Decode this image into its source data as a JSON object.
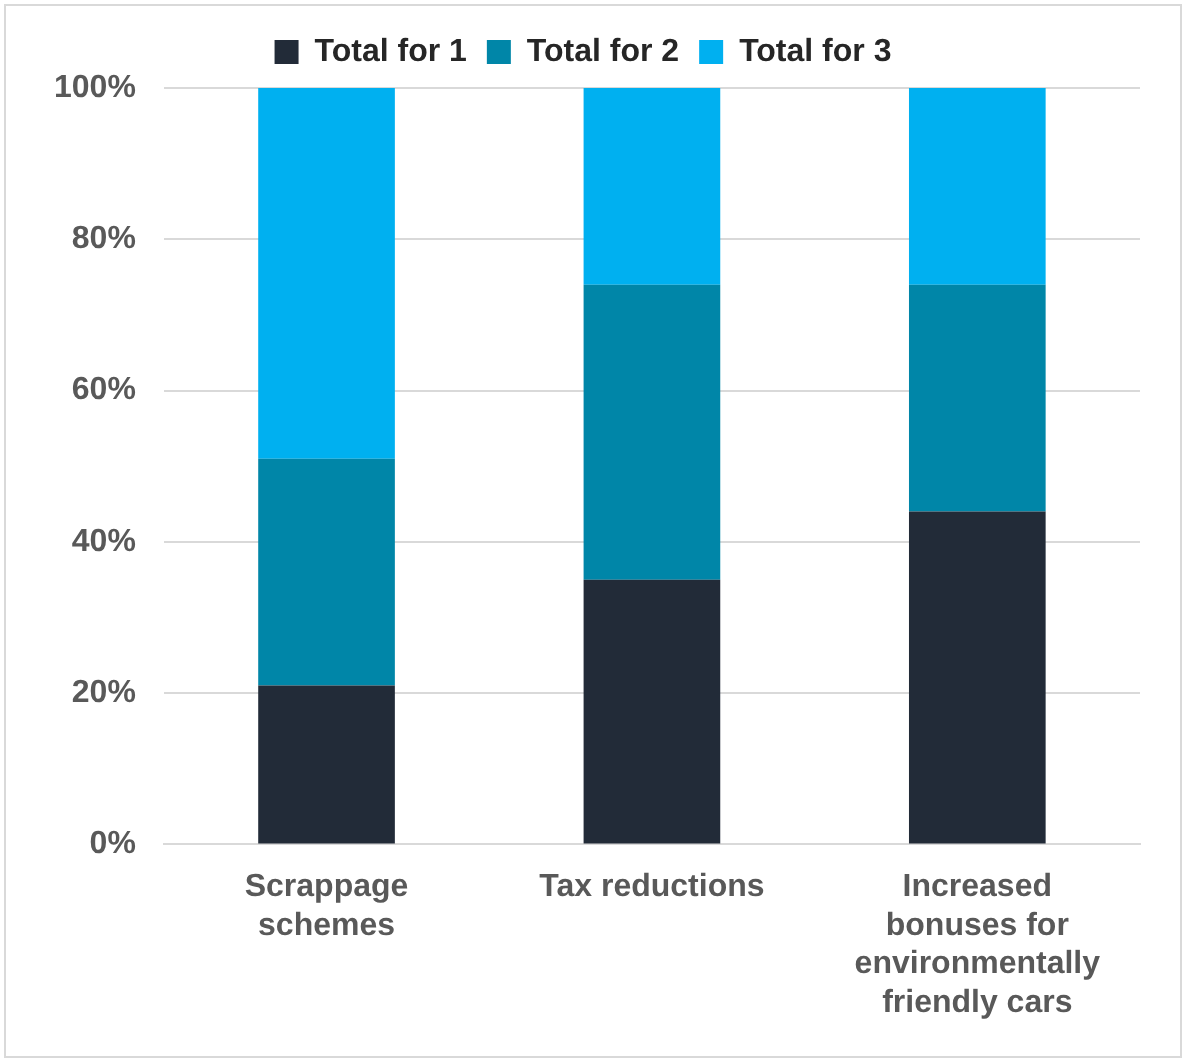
{
  "chart_data": {
    "type": "bar",
    "stacked": true,
    "categories": [
      "Scrappage schemes",
      "Tax reductions",
      "Increased bonuses for environmentally friendly cars"
    ],
    "series": [
      {
        "name": "Total for 1",
        "color": "#222b38",
        "values": [
          21,
          35,
          44
        ]
      },
      {
        "name": "Total for 2",
        "color": "#0086a8",
        "values": [
          30,
          39,
          30
        ]
      },
      {
        "name": "Total for 3",
        "color": "#00b0f0",
        "values": [
          49,
          26,
          26
        ]
      }
    ],
    "ylim": [
      0,
      100
    ],
    "yticks": [
      {
        "value": 0,
        "label": "0%"
      },
      {
        "value": 20,
        "label": "20%"
      },
      {
        "value": 40,
        "label": "40%"
      },
      {
        "value": 60,
        "label": "60%"
      },
      {
        "value": 80,
        "label": "80%"
      },
      {
        "value": 100,
        "label": "100%"
      }
    ],
    "grid": "y",
    "legend": "top"
  }
}
